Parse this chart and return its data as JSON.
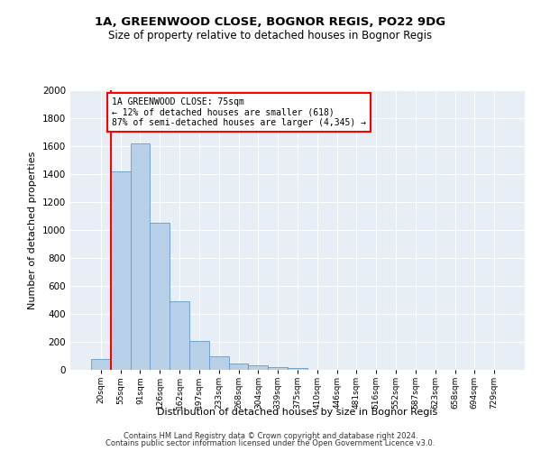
{
  "title1": "1A, GREENWOOD CLOSE, BOGNOR REGIS, PO22 9DG",
  "title2": "Size of property relative to detached houses in Bognor Regis",
  "xlabel": "Distribution of detached houses by size in Bognor Regis",
  "ylabel": "Number of detached properties",
  "bin_labels": [
    "20sqm",
    "55sqm",
    "91sqm",
    "126sqm",
    "162sqm",
    "197sqm",
    "233sqm",
    "268sqm",
    "304sqm",
    "339sqm",
    "375sqm",
    "410sqm",
    "446sqm",
    "481sqm",
    "516sqm",
    "552sqm",
    "587sqm",
    "623sqm",
    "658sqm",
    "694sqm",
    "729sqm"
  ],
  "bar_values": [
    75,
    1420,
    1620,
    1050,
    490,
    205,
    100,
    45,
    30,
    20,
    10,
    0,
    0,
    0,
    0,
    0,
    0,
    0,
    0,
    0,
    0
  ],
  "bar_color": "#b8cfe8",
  "bar_edge_color": "#6699cc",
  "vline_color": "red",
  "annotation_text": "1A GREENWOOD CLOSE: 75sqm\n← 12% of detached houses are smaller (618)\n87% of semi-detached houses are larger (4,345) →",
  "annotation_box_color": "white",
  "annotation_box_edge": "red",
  "ylim": [
    0,
    2000
  ],
  "yticks": [
    0,
    200,
    400,
    600,
    800,
    1000,
    1200,
    1400,
    1600,
    1800,
    2000
  ],
  "bg_color": "#e8eef5",
  "grid_color": "#ffffff",
  "footer1": "Contains HM Land Registry data © Crown copyright and database right 2024.",
  "footer2": "Contains public sector information licensed under the Open Government Licence v3.0."
}
